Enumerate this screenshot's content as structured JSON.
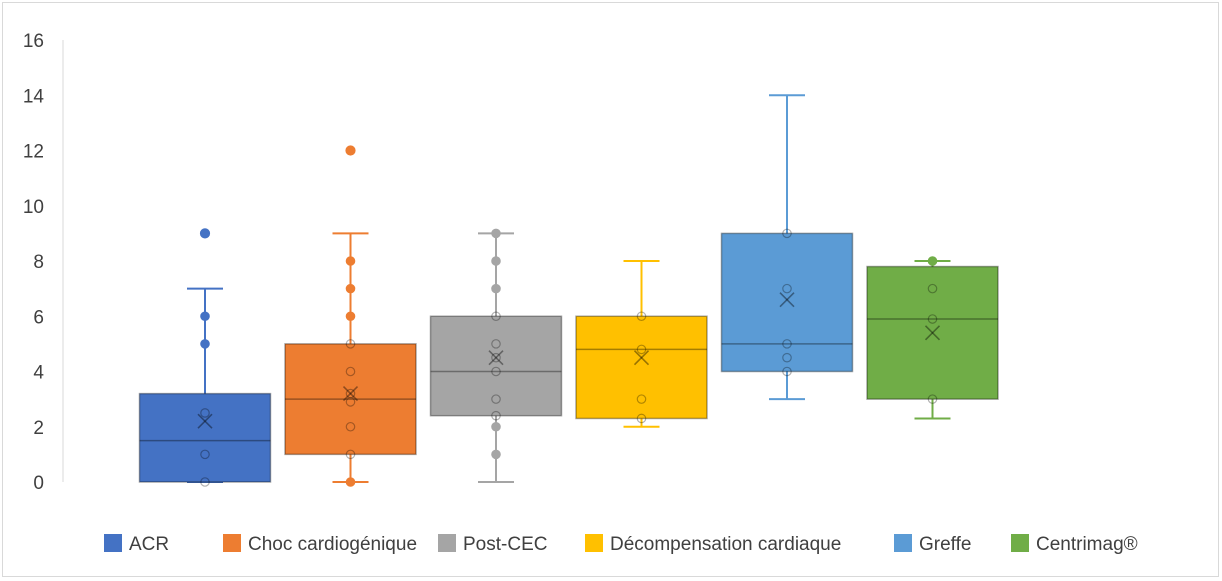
{
  "chart_data": {
    "type": "box",
    "title": "",
    "xlabel": "",
    "ylabel": "",
    "ylim": [
      0,
      16
    ],
    "yticks": [
      "0",
      "2",
      "4",
      "6",
      "8",
      "10",
      "12",
      "14",
      "16"
    ],
    "grid": false,
    "legend_position": "bottom",
    "series": [
      {
        "name": "ACR",
        "color": "#4472c4",
        "q1": 0,
        "median": 1.5,
        "q3": 3.2,
        "mean": 2.2,
        "whisker_low": 0,
        "whisker_high": 7,
        "points": [
          0,
          1,
          2.5,
          5,
          6,
          9
        ],
        "outliers": [
          9
        ]
      },
      {
        "name": "Choc cardiogénique",
        "color": "#ed7d31",
        "q1": 1,
        "median": 3,
        "q3": 5,
        "mean": 3.2,
        "whisker_low": 0,
        "whisker_high": 9,
        "points": [
          0,
          1,
          2,
          2.9,
          3.2,
          4,
          5,
          6,
          7,
          8,
          12
        ],
        "outliers": [
          12
        ]
      },
      {
        "name": "Post-CEC",
        "color": "#a5a5a5",
        "q1": 2.4,
        "median": 4,
        "q3": 6,
        "mean": 4.5,
        "whisker_low": 0,
        "whisker_high": 9,
        "points": [
          1,
          2,
          2.4,
          3,
          4,
          4.5,
          5,
          6,
          7,
          8,
          9
        ],
        "outliers": []
      },
      {
        "name": "Décompensation cardiaque",
        "color": "#ffc000",
        "q1": 2.3,
        "median": 4.8,
        "q3": 6,
        "mean": 4.5,
        "whisker_low": 2,
        "whisker_high": 8,
        "points": [
          2.3,
          3,
          4.8,
          6
        ],
        "outliers": []
      },
      {
        "name": "Greffe",
        "color": "#5b9bd5",
        "q1": 4,
        "median": 5,
        "q3": 9,
        "mean": 6.6,
        "whisker_low": 3,
        "whisker_high": 14,
        "points": [
          4,
          4.5,
          5,
          7,
          9
        ],
        "outliers": []
      },
      {
        "name": "Centrimag®",
        "color": "#70ad47",
        "q1": 3,
        "median": 5.9,
        "q3": 7.8,
        "mean": 5.4,
        "whisker_low": 2.3,
        "whisker_high": 8,
        "points": [
          3,
          5.9,
          7,
          8
        ],
        "outliers": []
      }
    ]
  }
}
